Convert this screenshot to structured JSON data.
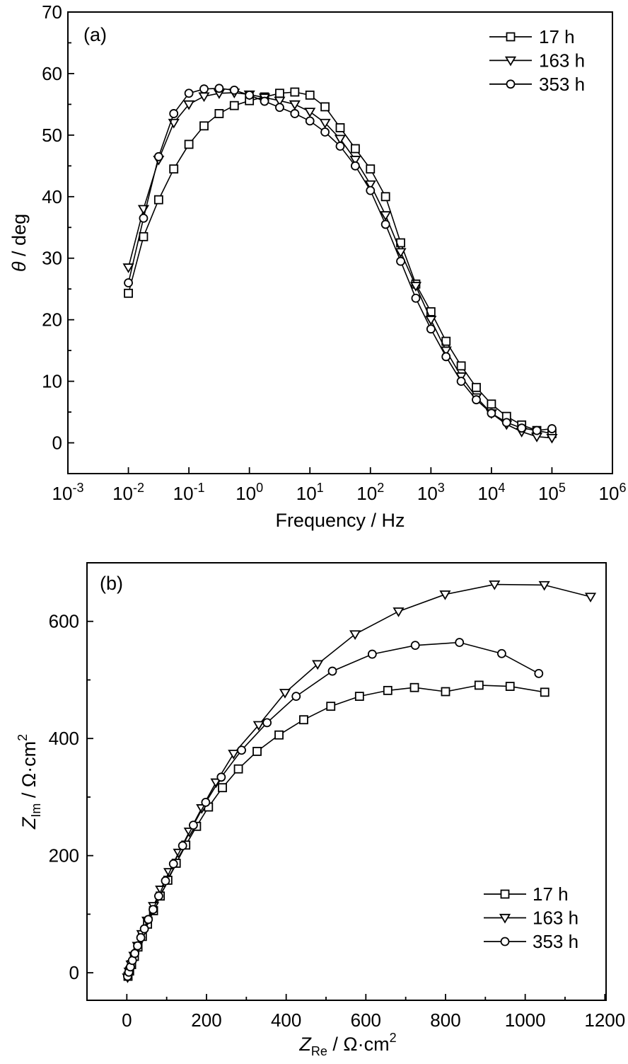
{
  "page": {
    "background": "#ffffff",
    "ink": "#000000"
  },
  "chart_data": [
    {
      "id": "panel_a",
      "type": "line",
      "panel_label": "(a)",
      "xlabel": "Frequency / Hz",
      "ylabel": "θ / deg",
      "x_axis": {
        "scale": "log",
        "min_exp": -3,
        "max_exp": 6,
        "tick_exponents": [
          -3,
          -2,
          -1,
          0,
          1,
          2,
          3,
          4,
          5,
          6
        ],
        "label_parts": [
          {
            "t": "Frequency / Hz"
          }
        ]
      },
      "y_axis": {
        "scale": "linear",
        "min": -5,
        "max": 70,
        "major_ticks": [
          0,
          10,
          20,
          30,
          40,
          50,
          60,
          70
        ],
        "minor_ticks": [
          5,
          15,
          25,
          35,
          45,
          55,
          65
        ],
        "label_parts": [
          {
            "t": "θ",
            "style": "italic"
          },
          {
            "t": " / deg"
          }
        ]
      },
      "legend": {
        "position": "top-right",
        "items": [
          "17 h",
          "163 h",
          "353 h"
        ]
      },
      "series": [
        {
          "name": "17 h",
          "marker": "square",
          "log_f": [
            -2,
            -1.75,
            -1.5,
            -1.25,
            -1,
            -0.75,
            -0.5,
            -0.25,
            0,
            0.25,
            0.5,
            0.75,
            1,
            1.25,
            1.5,
            1.75,
            2,
            2.25,
            2.5,
            2.75,
            3,
            3.25,
            3.5,
            3.75,
            4,
            4.25,
            4.5,
            4.75,
            5
          ],
          "theta_deg": [
            24.3,
            33.5,
            39.5,
            44.5,
            48.5,
            51.5,
            53.5,
            54.8,
            55.6,
            56.2,
            56.8,
            57.0,
            56.5,
            54.6,
            51.2,
            47.8,
            44.5,
            40.0,
            32.5,
            25.8,
            21.3,
            16.5,
            12.5,
            9.0,
            6.3,
            4.3,
            2.9,
            2.0,
            1.5
          ]
        },
        {
          "name": "163 h",
          "marker": "triangle-down",
          "log_f": [
            -2,
            -1.75,
            -1.5,
            -1.25,
            -1,
            -0.75,
            -0.5,
            -0.25,
            0,
            0.25,
            0.5,
            0.75,
            1,
            1.25,
            1.5,
            1.75,
            2,
            2.25,
            2.5,
            2.75,
            3,
            3.25,
            3.5,
            3.75,
            4,
            4.25,
            4.5,
            4.75,
            5
          ],
          "theta_deg": [
            28.5,
            38.0,
            46.0,
            52.0,
            55.0,
            56.3,
            56.8,
            56.9,
            56.6,
            56.1,
            55.6,
            55.0,
            53.8,
            52.0,
            49.4,
            46.0,
            42.0,
            37.0,
            31.0,
            25.5,
            20.0,
            15.0,
            10.8,
            7.4,
            4.8,
            3.0,
            1.8,
            1.0,
            0.8
          ]
        },
        {
          "name": "353 h",
          "marker": "circle",
          "log_f": [
            -2,
            -1.75,
            -1.5,
            -1.25,
            -1,
            -0.75,
            -0.5,
            -0.25,
            0,
            0.25,
            0.5,
            0.75,
            1,
            1.25,
            1.5,
            1.75,
            2,
            2.25,
            2.5,
            2.75,
            3,
            3.25,
            3.5,
            3.75,
            4,
            4.25,
            4.5,
            4.75,
            5
          ],
          "theta_deg": [
            26.0,
            36.5,
            46.5,
            53.5,
            56.8,
            57.5,
            57.6,
            57.3,
            56.5,
            55.5,
            54.5,
            53.5,
            52.3,
            50.5,
            48.2,
            45.0,
            41.0,
            35.5,
            29.5,
            23.5,
            18.5,
            14.0,
            10.0,
            7.0,
            4.8,
            3.3,
            2.4,
            2.0,
            2.3
          ]
        }
      ]
    },
    {
      "id": "panel_b",
      "type": "scatter-line",
      "panel_label": "(b)",
      "xlabel": "Z_Re / Ω·cm²",
      "ylabel": "Z_Im / Ω·cm²",
      "x_axis": {
        "scale": "linear",
        "min": -100,
        "max": 1203,
        "major_ticks": [
          0,
          200,
          400,
          600,
          800,
          1000,
          1200
        ],
        "minor_ticks": [
          100,
          300,
          500,
          700,
          900,
          1100
        ],
        "label_parts": [
          {
            "t": "Z",
            "style": "italic"
          },
          {
            "t": "Re",
            "style": "sub"
          },
          {
            "t": " / Ω·cm"
          },
          {
            "t": "2",
            "style": "sup"
          }
        ]
      },
      "y_axis": {
        "scale": "linear",
        "min": -47,
        "max": 700,
        "major_ticks": [
          0,
          200,
          400,
          600
        ],
        "minor_ticks": [
          100,
          300,
          500,
          700
        ],
        "label_parts": [
          {
            "t": "Z",
            "style": "italic"
          },
          {
            "t": "Im",
            "style": "sub"
          },
          {
            "t": " / Ω·cm"
          },
          {
            "t": "2",
            "style": "sup"
          }
        ]
      },
      "legend": {
        "position": "bottom-right",
        "items": [
          "17 h",
          "163 h",
          "353 h"
        ]
      },
      "series": [
        {
          "name": "17 h",
          "marker": "square",
          "points": [
            [
              3,
              -6
            ],
            [
              7,
              3
            ],
            [
              12,
              14
            ],
            [
              19,
              28
            ],
            [
              28,
              44
            ],
            [
              39,
              62
            ],
            [
              52,
              83
            ],
            [
              67,
              106
            ],
            [
              84,
              131
            ],
            [
              103,
              158
            ],
            [
              124,
              187
            ],
            [
              148,
              218
            ],
            [
              175,
              250
            ],
            [
              205,
              283
            ],
            [
              240,
              316
            ],
            [
              280,
              348
            ],
            [
              327,
              378
            ],
            [
              382,
              406
            ],
            [
              444,
              432
            ],
            [
              512,
              455
            ],
            [
              584,
              472
            ],
            [
              655,
              482
            ],
            [
              722,
              487
            ],
            [
              800,
              480
            ],
            [
              884,
              491
            ],
            [
              962,
              489
            ],
            [
              1049,
              479
            ]
          ]
        },
        {
          "name": "163 h",
          "marker": "triangle-down",
          "points": [
            [
              2,
              -8
            ],
            [
              6,
              2
            ],
            [
              11,
              14
            ],
            [
              18,
              29
            ],
            [
              27,
              46
            ],
            [
              38,
              66
            ],
            [
              51,
              89
            ],
            [
              67,
              114
            ],
            [
              85,
              142
            ],
            [
              106,
              172
            ],
            [
              130,
              205
            ],
            [
              157,
              241
            ],
            [
              188,
              281
            ],
            [
              224,
              325
            ],
            [
              268,
              374
            ],
            [
              331,
              423
            ],
            [
              397,
              478
            ],
            [
              479,
              527
            ],
            [
              573,
              578
            ],
            [
              682,
              617
            ],
            [
              799,
              646
            ],
            [
              923,
              663
            ],
            [
              1048,
              662
            ],
            [
              1164,
              642
            ]
          ]
        },
        {
          "name": "353 h",
          "marker": "circle",
          "points": [
            [
              2,
              -6
            ],
            [
              5,
              1
            ],
            [
              9,
              10
            ],
            [
              14,
              21
            ],
            [
              20,
              33
            ],
            [
              27,
              46
            ],
            [
              35,
              60
            ],
            [
              44,
              75
            ],
            [
              54,
              91
            ],
            [
              66,
              108
            ],
            [
              80,
              131
            ],
            [
              97,
              157
            ],
            [
              117,
              186
            ],
            [
              140,
              217
            ],
            [
              167,
              252
            ],
            [
              198,
              291
            ],
            [
              237,
              334
            ],
            [
              288,
              380
            ],
            [
              352,
              427
            ],
            [
              425,
              472
            ],
            [
              516,
              515
            ],
            [
              616,
              544
            ],
            [
              724,
              559
            ],
            [
              835,
              564
            ],
            [
              941,
              545
            ],
            [
              1034,
              511
            ]
          ]
        }
      ]
    }
  ]
}
